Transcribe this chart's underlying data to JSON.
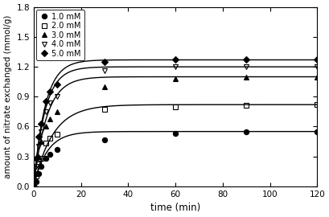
{
  "title": "",
  "xlabel": "time (min)",
  "ylabel": "amount of nitrate exchanged (mmol/g)",
  "xlim": [
    0,
    120
  ],
  "ylim": [
    0,
    1.8
  ],
  "yticks": [
    0.0,
    0.3,
    0.6,
    0.9,
    1.2,
    1.5,
    1.8
  ],
  "xticks": [
    0,
    20,
    40,
    60,
    80,
    100,
    120
  ],
  "series": [
    {
      "label": "1.0 mM",
      "marker": "o",
      "fillstyle": "full",
      "color": "black",
      "times": [
        0,
        1,
        2,
        3,
        5,
        7,
        10,
        30,
        60,
        90,
        120
      ],
      "values": [
        0.0,
        0.05,
        0.13,
        0.2,
        0.28,
        0.32,
        0.37,
        0.47,
        0.53,
        0.55,
        0.55
      ]
    },
    {
      "label": "2.0 mM",
      "marker": "s",
      "fillstyle": "none",
      "color": "black",
      "times": [
        0,
        1,
        2,
        3,
        5,
        7,
        10,
        30,
        60,
        90,
        120
      ],
      "values": [
        0.0,
        0.1,
        0.22,
        0.28,
        0.43,
        0.48,
        0.52,
        0.77,
        0.8,
        0.81,
        0.82
      ]
    },
    {
      "label": "3.0 mM",
      "marker": "^",
      "fillstyle": "full",
      "color": "black",
      "times": [
        0,
        1,
        2,
        3,
        5,
        7,
        10,
        30,
        60,
        90,
        120
      ],
      "values": [
        0.0,
        0.13,
        0.3,
        0.45,
        0.6,
        0.68,
        0.75,
        1.0,
        1.08,
        1.1,
        1.1
      ]
    },
    {
      "label": "4.0 mM",
      "marker": "v",
      "fillstyle": "none",
      "color": "black",
      "times": [
        0,
        1,
        2,
        3,
        5,
        7,
        10,
        30,
        60,
        90,
        120
      ],
      "values": [
        0.0,
        0.2,
        0.4,
        0.55,
        0.75,
        0.84,
        0.9,
        1.16,
        1.2,
        1.2,
        1.2
      ]
    },
    {
      "label": "5.0 mM",
      "marker": "D",
      "fillstyle": "full",
      "color": "black",
      "times": [
        0,
        1,
        2,
        3,
        5,
        7,
        10,
        30,
        60,
        90,
        120
      ],
      "values": [
        0.0,
        0.28,
        0.5,
        0.63,
        0.85,
        0.95,
        1.02,
        1.25,
        1.27,
        1.27,
        1.27
      ]
    }
  ],
  "fit_color": "black",
  "fit_linewidth": 1.0,
  "markersize": 4.5,
  "legend_loc": "upper left",
  "legend_fontsize": 7.0,
  "xlabel_fontsize": 8.5,
  "ylabel_fontsize": 7.5,
  "tick_labelsize": 7.5
}
